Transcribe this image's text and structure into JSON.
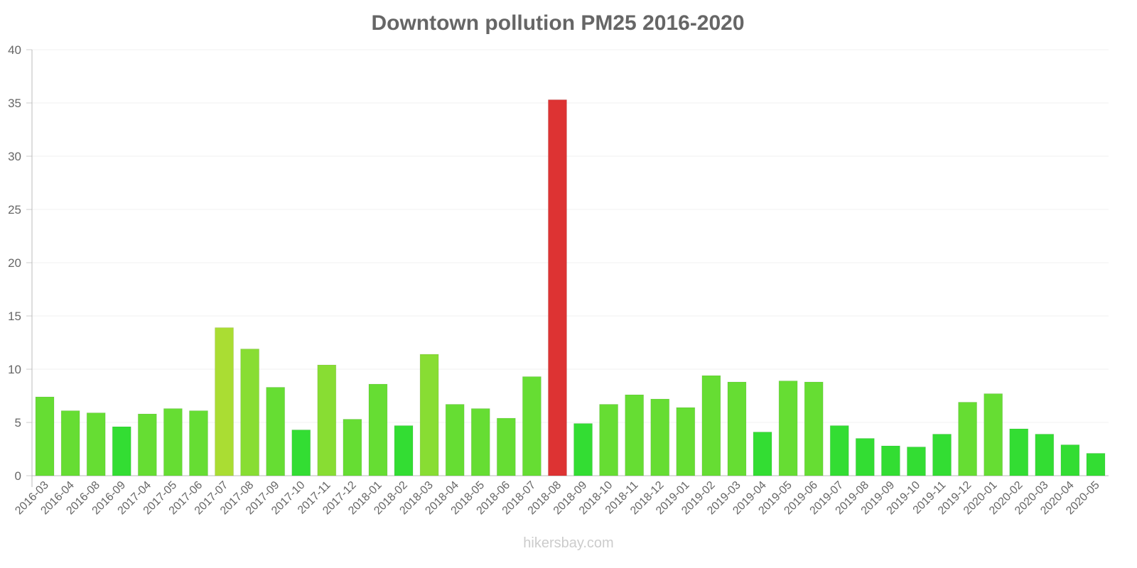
{
  "chart_data": {
    "type": "bar",
    "title": "Downtown pollution PM25 2016-2020",
    "xlabel": "",
    "ylabel": "",
    "ylim": [
      0,
      40
    ],
    "yticks": [
      0,
      5,
      10,
      15,
      20,
      25,
      30,
      35,
      40
    ],
    "grid": true,
    "categories": [
      "2016-03",
      "2016-04",
      "2016-08",
      "2016-09",
      "2017-04",
      "2017-05",
      "2017-06",
      "2017-07",
      "2017-08",
      "2017-09",
      "2017-10",
      "2017-11",
      "2017-12",
      "2018-01",
      "2018-02",
      "2018-03",
      "2018-04",
      "2018-05",
      "2018-06",
      "2018-07",
      "2018-08",
      "2018-09",
      "2018-10",
      "2018-11",
      "2018-12",
      "2019-01",
      "2019-02",
      "2019-03",
      "2019-04",
      "2019-05",
      "2019-06",
      "2019-07",
      "2019-08",
      "2019-09",
      "2019-10",
      "2019-11",
      "2019-12",
      "2020-01",
      "2020-02",
      "2020-03",
      "2020-04",
      "2020-05"
    ],
    "values": [
      7.4,
      6.1,
      5.9,
      4.6,
      5.8,
      6.3,
      6.1,
      13.9,
      11.9,
      8.3,
      4.3,
      10.4,
      5.3,
      8.6,
      4.7,
      11.4,
      6.7,
      6.3,
      5.4,
      9.3,
      35.3,
      4.9,
      6.7,
      7.6,
      7.2,
      6.4,
      9.4,
      8.8,
      4.1,
      8.9,
      8.8,
      4.7,
      3.5,
      2.8,
      2.7,
      3.9,
      6.9,
      7.7,
      4.4,
      3.9,
      2.9,
      2.1
    ],
    "colors": {
      "low": "#33dd33",
      "moderate": "#66dd33",
      "elevated": "#88dd33",
      "high": "#aadd33",
      "extreme": "#dd3333"
    }
  },
  "footer": "hikersbay.com"
}
